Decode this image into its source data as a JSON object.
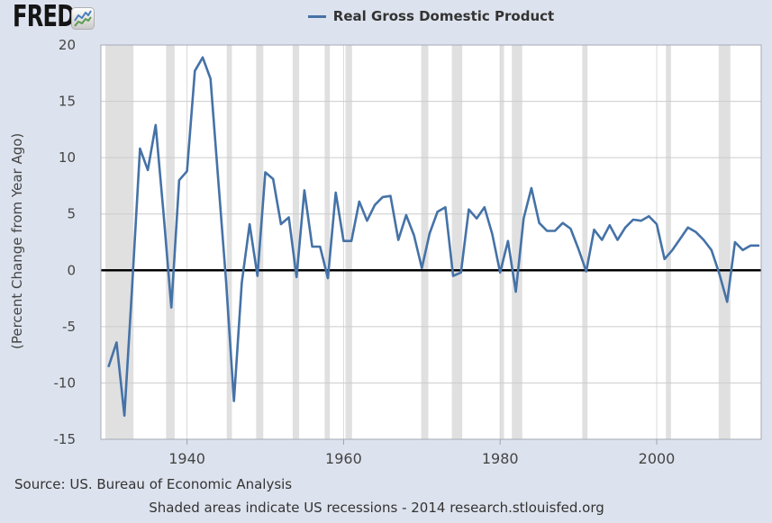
{
  "app": {
    "logo": "FRED.",
    "logo_icon": "mini-line-chart-icon"
  },
  "legend": {
    "label": "Real Gross Domestic Product"
  },
  "footer": {
    "source": "Source: US. Bureau of Economic Analysis",
    "note": "Shaded areas indicate US recessions - 2014 research.stlouisfed.org"
  },
  "chart_data": {
    "type": "line",
    "title": "Real Gross Domestic Product",
    "ylabel": "(Percent Change from Year Ago)",
    "xlabel": "",
    "legend_position": "top",
    "grid": true,
    "line_color": "#4572a7",
    "recession_color": "#e0e0e0",
    "zero_line_color": "#000000",
    "background_color": "#dde3ee",
    "plot_background_color": "#ffffff",
    "xlim": [
      1929,
      2013.35
    ],
    "ylim": [
      -15,
      20
    ],
    "x_ticks": [
      1940,
      1960,
      1980,
      2000
    ],
    "y_ticks": [
      20,
      15,
      10,
      5,
      0,
      -5,
      -10,
      -15
    ],
    "years": [
      1930,
      1931,
      1932,
      1933,
      1934,
      1935,
      1936,
      1937,
      1938,
      1939,
      1940,
      1941,
      1942,
      1943,
      1944,
      1945,
      1946,
      1947,
      1948,
      1949,
      1950,
      1951,
      1952,
      1953,
      1954,
      1955,
      1956,
      1957,
      1958,
      1959,
      1960,
      1961,
      1962,
      1963,
      1964,
      1965,
      1966,
      1967,
      1968,
      1969,
      1970,
      1971,
      1972,
      1973,
      1974,
      1975,
      1976,
      1977,
      1978,
      1979,
      1980,
      1981,
      1982,
      1983,
      1984,
      1985,
      1986,
      1987,
      1988,
      1989,
      1990,
      1991,
      1992,
      1993,
      1994,
      1995,
      1996,
      1997,
      1998,
      1999,
      2000,
      2001,
      2002,
      2003,
      2004,
      2005,
      2006,
      2007,
      2008,
      2009,
      2010,
      2011,
      2012,
      2013
    ],
    "values": [
      -8.5,
      -6.4,
      -12.9,
      -1.3,
      10.8,
      8.9,
      12.9,
      5.1,
      -3.3,
      8.0,
      8.8,
      17.7,
      18.9,
      17.0,
      8.0,
      -1.0,
      -11.6,
      -1.1,
      4.1,
      -0.5,
      8.7,
      8.1,
      4.1,
      4.7,
      -0.6,
      7.1,
      2.1,
      2.1,
      -0.7,
      6.9,
      2.6,
      2.6,
      6.1,
      4.4,
      5.8,
      6.5,
      6.6,
      2.7,
      4.9,
      3.1,
      0.2,
      3.3,
      5.2,
      5.6,
      -0.5,
      -0.2,
      5.4,
      4.6,
      5.6,
      3.2,
      -0.2,
      2.6,
      -1.9,
      4.6,
      7.3,
      4.2,
      3.5,
      3.5,
      4.2,
      3.7,
      1.9,
      -0.1,
      3.6,
      2.7,
      4.0,
      2.7,
      3.8,
      4.5,
      4.4,
      4.8,
      4.1,
      1.0,
      1.8,
      2.8,
      3.8,
      3.4,
      2.7,
      1.8,
      -0.3,
      -2.8,
      2.5,
      1.8,
      2.2,
      2.2
    ],
    "recessions": [
      [
        1929.58,
        1933.17
      ],
      [
        1937.33,
        1938.42
      ],
      [
        1945.08,
        1945.75
      ],
      [
        1948.83,
        1949.75
      ],
      [
        1953.5,
        1954.33
      ],
      [
        1957.58,
        1958.25
      ],
      [
        1960.25,
        1961.08
      ],
      [
        1969.92,
        1970.83
      ],
      [
        1973.83,
        1975.17
      ],
      [
        1980.0,
        1980.5
      ],
      [
        1981.5,
        1982.83
      ],
      [
        1990.5,
        1991.17
      ],
      [
        2001.17,
        2001.83
      ],
      [
        2007.92,
        2009.42
      ]
    ]
  }
}
